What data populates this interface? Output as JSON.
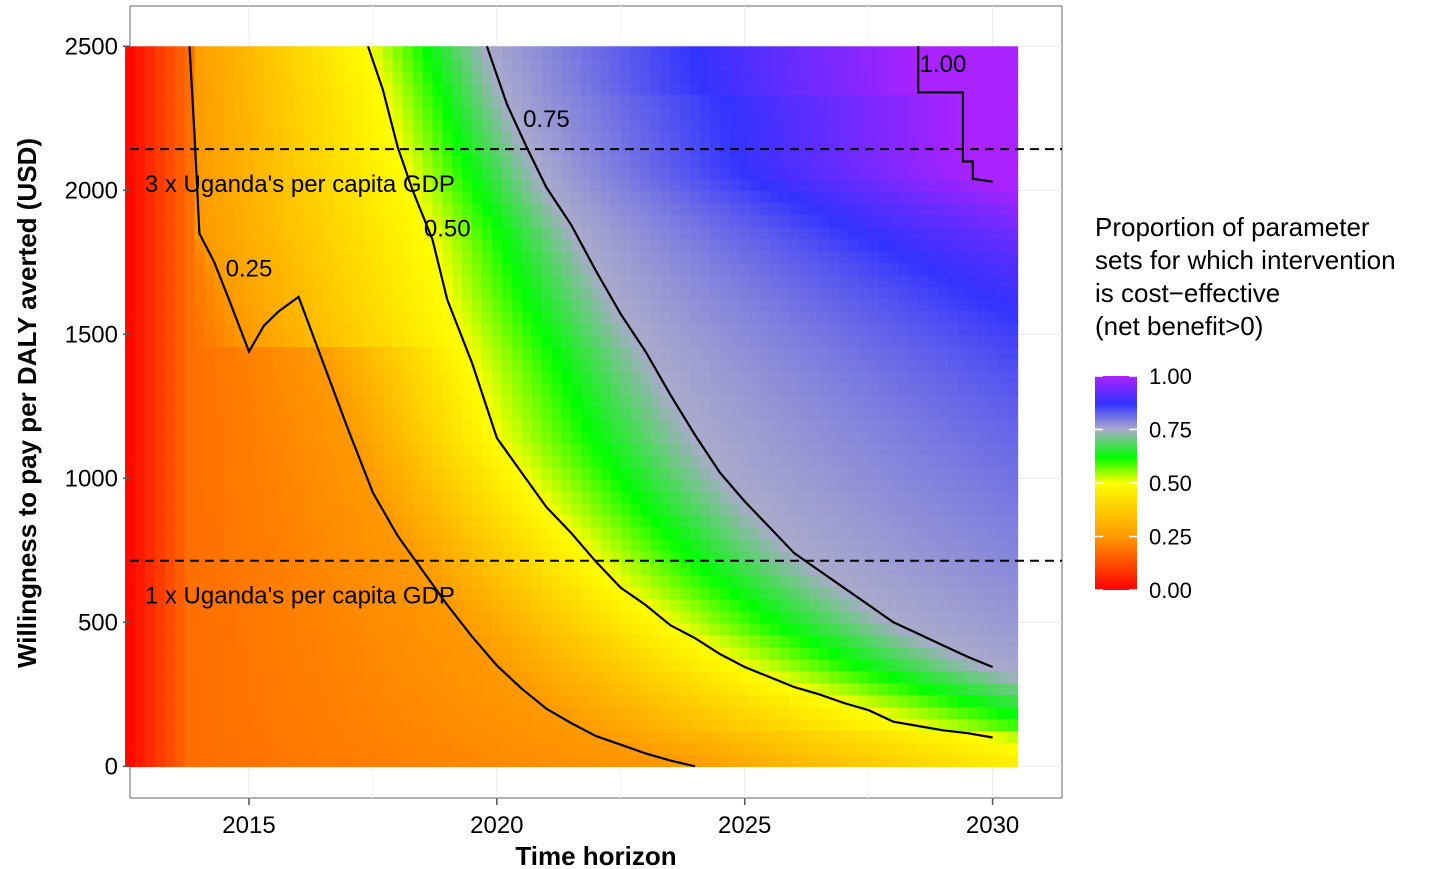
{
  "chart_data": {
    "type": "heatmap",
    "xlabel": "Time horizon",
    "ylabel": "Willingness to pay per DALY averted (USD)",
    "xlim": [
      2012.6,
      2031.4
    ],
    "ylim": [
      -110,
      2640
    ],
    "x_ticks": [
      "2015",
      "2020",
      "2025",
      "2030"
    ],
    "x_tick_values": [
      2015,
      2020,
      2025,
      2030
    ],
    "y_ticks": [
      "0",
      "500",
      "1000",
      "1500",
      "2000",
      "2500"
    ],
    "y_tick_values": [
      0,
      500,
      1000,
      1500,
      2000,
      2500
    ],
    "grid": true,
    "legend": {
      "title_lines": [
        "Proportion of parameter",
        "sets for which intervention",
        "is cost−effective",
        "(net benefit>0)"
      ],
      "labels": [
        "1.00",
        "0.75",
        "0.50",
        "0.25",
        "0.00"
      ],
      "values": [
        1.0,
        0.75,
        0.5,
        0.25,
        0.0
      ],
      "placement": "right",
      "colors": [
        {
          "stop": 0.0,
          "color": "#ff0000"
        },
        {
          "stop": 0.25,
          "color": "#ff9900"
        },
        {
          "stop": 0.5,
          "color": "#ffff00"
        },
        {
          "stop": 0.62,
          "color": "#00ff00"
        },
        {
          "stop": 0.75,
          "color": "#aaaacc"
        },
        {
          "stop": 0.87,
          "color": "#3333ff"
        },
        {
          "stop": 1.0,
          "color": "#aa22ff"
        }
      ]
    },
    "reference_lines": [
      {
        "label": "3 x Uganda's per capita GDP",
        "y": 2143
      },
      {
        "label": "1 x Uganda's per capita GDP",
        "y": 714
      }
    ],
    "contours": [
      {
        "level": "0.25",
        "label_at": [
          2015.0,
          1700
        ],
        "points": [
          [
            2013.8,
            2500
          ],
          [
            2013.9,
            2200
          ],
          [
            2014.0,
            1850
          ],
          [
            2014.3,
            1750
          ],
          [
            2014.6,
            1620
          ],
          [
            2015.0,
            1440
          ],
          [
            2015.3,
            1530
          ],
          [
            2015.6,
            1580
          ],
          [
            2016.0,
            1630
          ],
          [
            2016.5,
            1400
          ],
          [
            2017.0,
            1170
          ],
          [
            2017.5,
            950
          ],
          [
            2018.0,
            800
          ],
          [
            2018.5,
            680
          ],
          [
            2019.0,
            560
          ],
          [
            2019.5,
            450
          ],
          [
            2020.0,
            350
          ],
          [
            2020.5,
            270
          ],
          [
            2021.0,
            200
          ],
          [
            2021.5,
            150
          ],
          [
            2022.0,
            105
          ],
          [
            2022.5,
            75
          ],
          [
            2023.0,
            45
          ],
          [
            2023.5,
            20
          ],
          [
            2024.0,
            0
          ]
        ]
      },
      {
        "level": "0.50",
        "label_at": [
          2019.0,
          1840
        ],
        "points": [
          [
            2017.4,
            2500
          ],
          [
            2017.7,
            2350
          ],
          [
            2018.0,
            2150
          ],
          [
            2018.3,
            2000
          ],
          [
            2018.7,
            1830
          ],
          [
            2019.0,
            1620
          ],
          [
            2019.5,
            1400
          ],
          [
            2020.0,
            1140
          ],
          [
            2020.5,
            1020
          ],
          [
            2021.0,
            900
          ],
          [
            2021.5,
            810
          ],
          [
            2022.0,
            710
          ],
          [
            2022.5,
            620
          ],
          [
            2023.0,
            560
          ],
          [
            2023.5,
            490
          ],
          [
            2024.0,
            445
          ],
          [
            2024.5,
            390
          ],
          [
            2025.0,
            345
          ],
          [
            2025.5,
            310
          ],
          [
            2026.0,
            275
          ],
          [
            2026.5,
            250
          ],
          [
            2027.0,
            220
          ],
          [
            2027.5,
            195
          ],
          [
            2028.0,
            155
          ],
          [
            2028.5,
            140
          ],
          [
            2029.0,
            125
          ],
          [
            2029.5,
            115
          ],
          [
            2030.0,
            100
          ]
        ]
      },
      {
        "level": "0.75",
        "label_at": [
          2021.0,
          2220
        ],
        "points": [
          [
            2019.8,
            2500
          ],
          [
            2020.2,
            2300
          ],
          [
            2020.6,
            2150
          ],
          [
            2021.0,
            2010
          ],
          [
            2021.5,
            1880
          ],
          [
            2022.0,
            1720
          ],
          [
            2022.5,
            1570
          ],
          [
            2023.0,
            1440
          ],
          [
            2023.5,
            1290
          ],
          [
            2024.0,
            1150
          ],
          [
            2024.5,
            1020
          ],
          [
            2025.0,
            920
          ],
          [
            2025.5,
            830
          ],
          [
            2026.0,
            740
          ],
          [
            2026.5,
            680
          ],
          [
            2027.0,
            620
          ],
          [
            2027.5,
            560
          ],
          [
            2028.0,
            500
          ],
          [
            2028.5,
            460
          ],
          [
            2029.0,
            420
          ],
          [
            2029.5,
            380
          ],
          [
            2030.0,
            345
          ]
        ]
      },
      {
        "level": "1.00",
        "label_at": [
          2029.0,
          2410
        ],
        "points": [
          [
            2028.5,
            2500
          ],
          [
            2028.5,
            2340
          ],
          [
            2029.4,
            2340
          ],
          [
            2029.4,
            2100
          ],
          [
            2029.6,
            2100
          ],
          [
            2029.6,
            2040
          ],
          [
            2030.0,
            2030
          ]
        ]
      }
    ]
  }
}
